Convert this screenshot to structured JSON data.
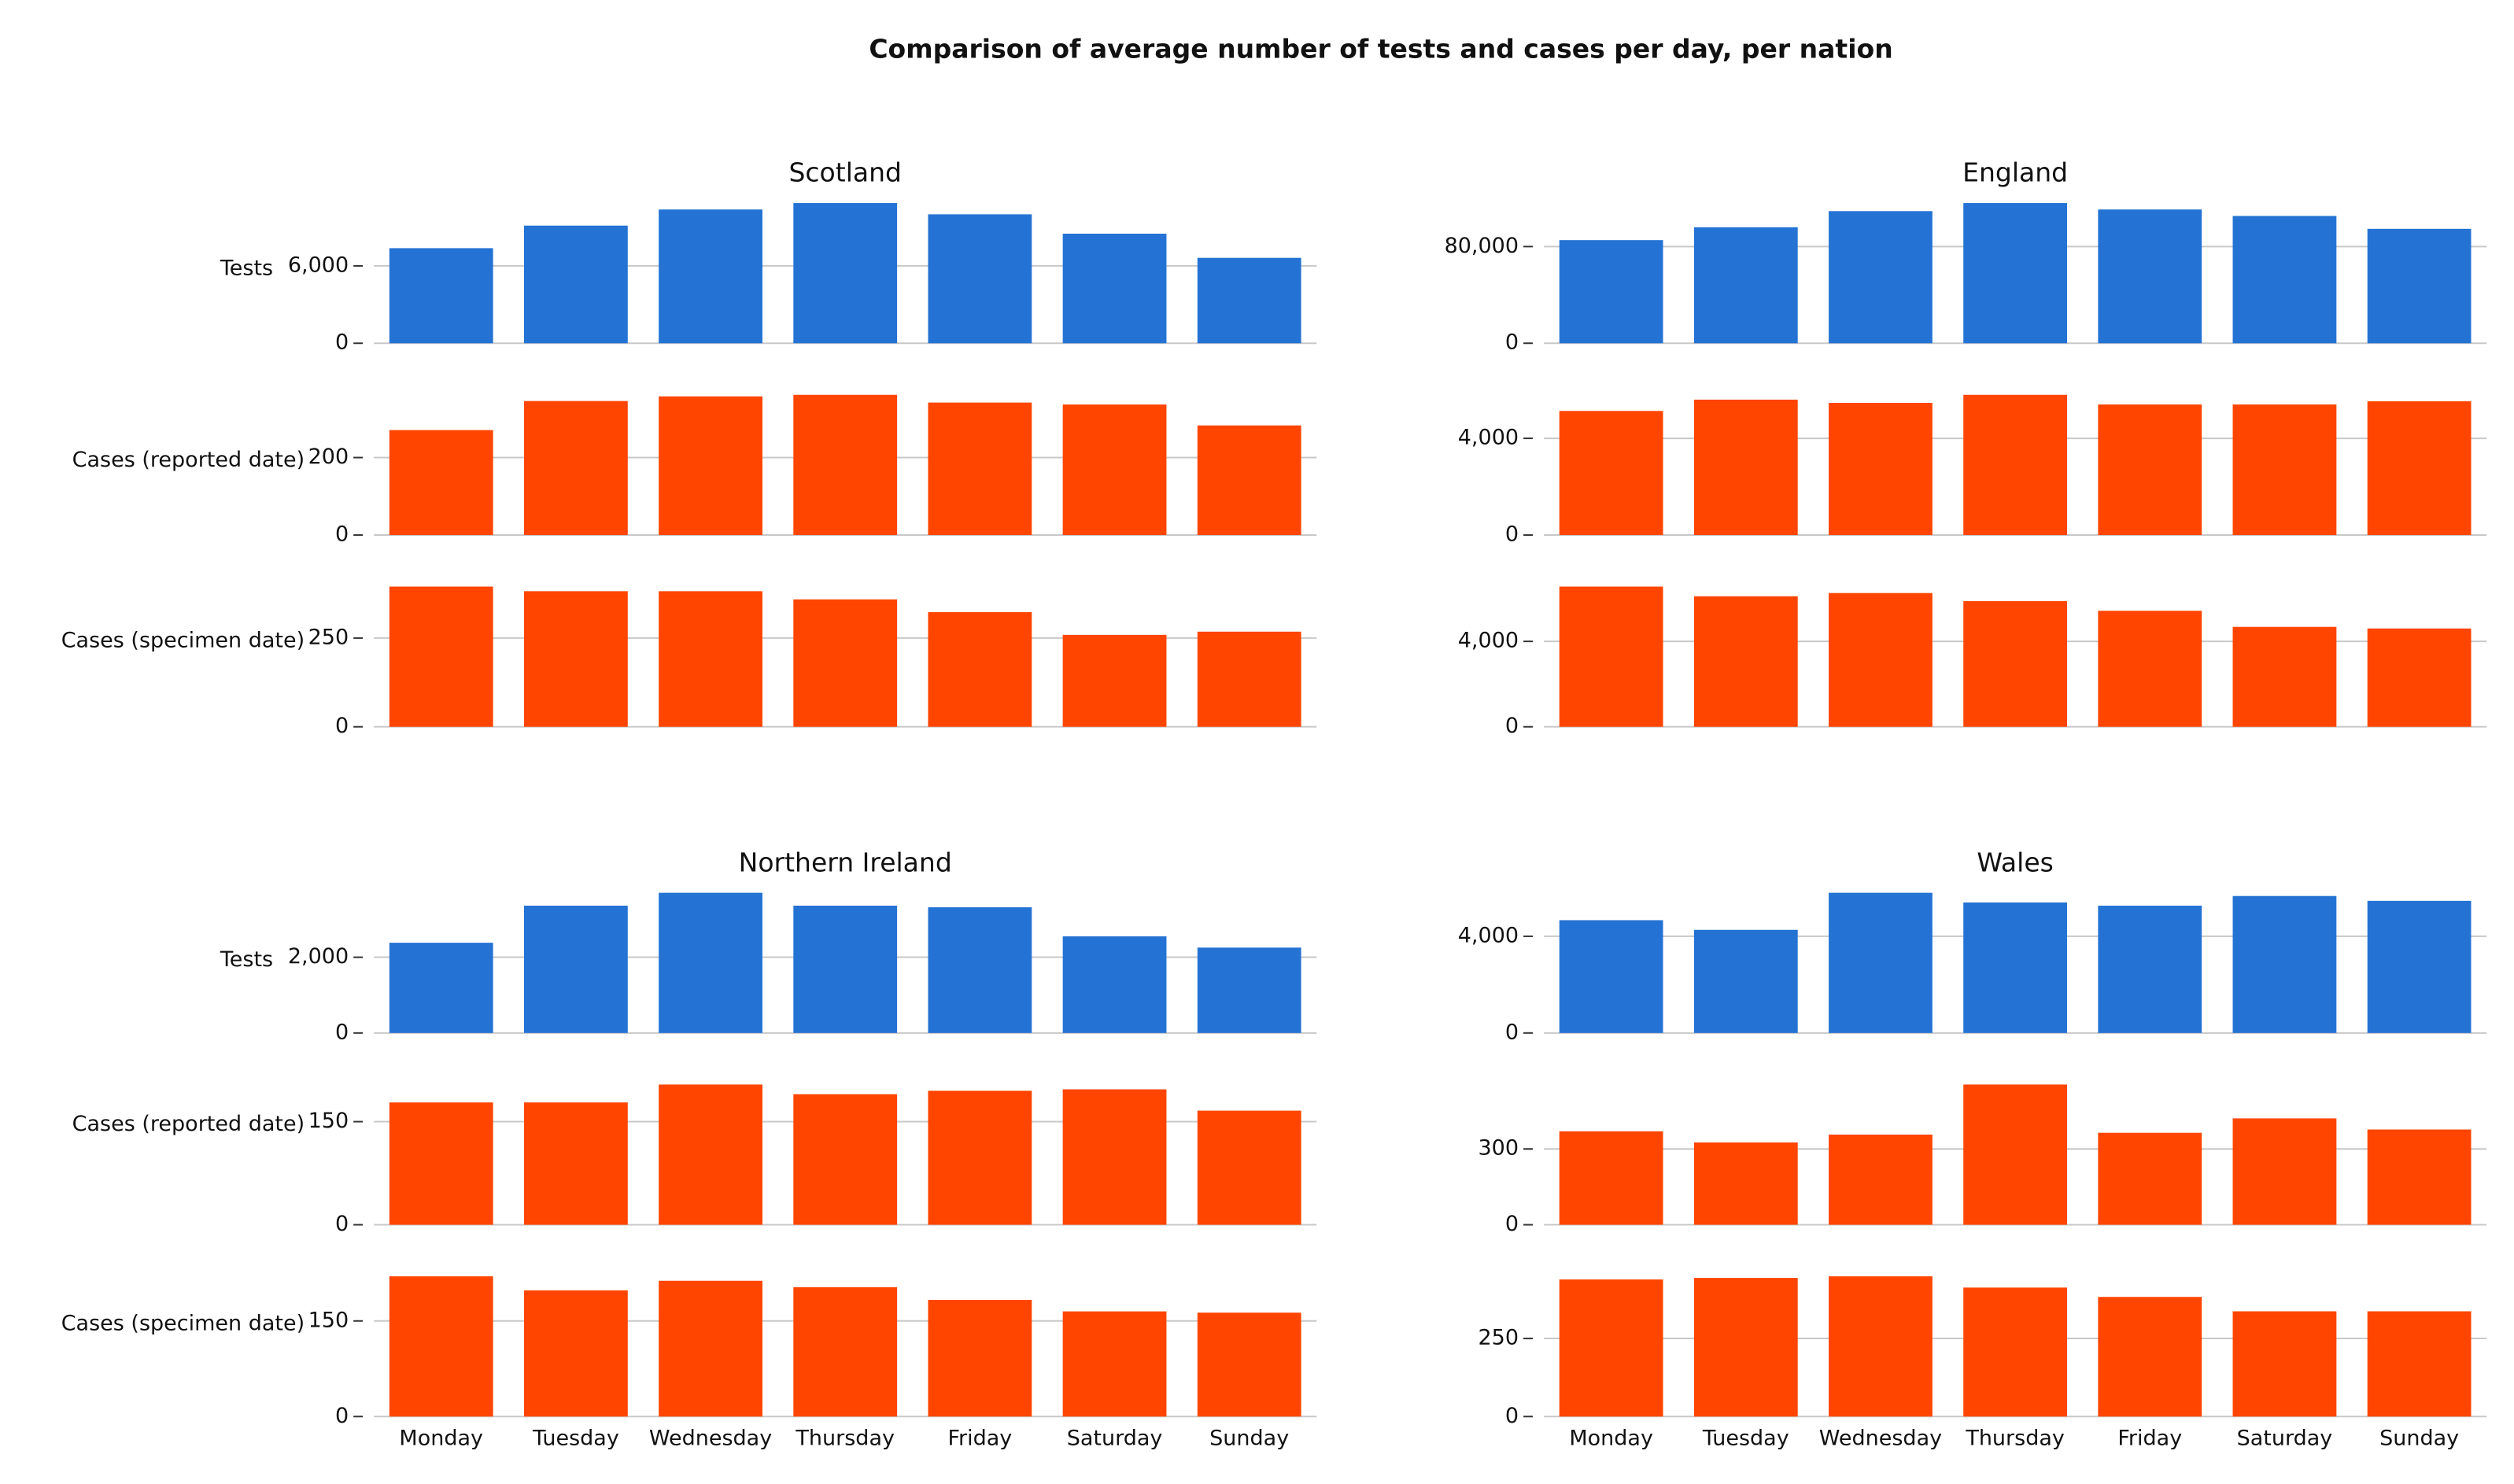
{
  "title": "Comparison of average number of tests and cases per day, per nation",
  "chart_data": [
    {
      "type": "bar",
      "title": "Scotland",
      "categories": [
        "Monday",
        "Tuesday",
        "Wednesday",
        "Thursday",
        "Friday",
        "Saturday",
        "Sunday"
      ],
      "panels": [
        {
          "ylabel": "Tests",
          "color": "#2473d4",
          "values": [
            7375,
            9125,
            10375,
            10875,
            10000,
            8500,
            6625
          ],
          "ylim": [
            0,
            10875
          ],
          "yticks": [
            0,
            {
              "value": 6000,
              "label": "6,000"
            }
          ]
        },
        {
          "ylabel": "Cases (reported date)",
          "color": "#ff4500",
          "values": [
            271,
            346,
            358,
            362,
            342,
            337,
            283
          ],
          "ylim": [
            0,
            362
          ],
          "yticks": [
            0,
            200
          ]
        },
        {
          "ylabel": "Cases (specimen date)",
          "color": "#ff4500",
          "values": [
            395,
            382,
            382,
            359,
            323,
            259,
            268
          ],
          "ylim": [
            0,
            395
          ],
          "yticks": [
            0,
            250
          ]
        }
      ]
    },
    {
      "type": "bar",
      "title": "England",
      "categories": [
        "Monday",
        "Tuesday",
        "Wednesday",
        "Thursday",
        "Friday",
        "Saturday",
        "Sunday"
      ],
      "panels": [
        {
          "color": "#2473d4",
          "values": [
            85333,
            96000,
            109333,
            116000,
            110667,
            105333,
            94667
          ],
          "ylim": [
            0,
            116000
          ],
          "yticks": [
            0,
            {
              "value": 80000,
              "label": "80,000"
            }
          ]
        },
        {
          "color": "#ff4500",
          "values": [
            5133,
            5600,
            5467,
            5800,
            5400,
            5400,
            5533
          ],
          "ylim": [
            0,
            5800
          ],
          "yticks": [
            0,
            {
              "value": 4000,
              "label": "4,000"
            }
          ]
        },
        {
          "color": "#ff4500",
          "values": [
            6566,
            6113,
            6264,
            5887,
            5434,
            4679,
            4604
          ],
          "ylim": [
            0,
            6566
          ],
          "yticks": [
            0,
            {
              "value": 4000,
              "label": "4,000"
            }
          ]
        }
      ]
    },
    {
      "type": "bar",
      "title": "Northern Ireland",
      "categories": [
        "Monday",
        "Tuesday",
        "Wednesday",
        "Thursday",
        "Friday",
        "Saturday",
        "Sunday"
      ],
      "panels": [
        {
          "ylabel": "Tests",
          "color": "#2473d4",
          "values": [
            2383,
            3362,
            3702,
            3362,
            3319,
            2553,
            2255
          ],
          "ylim": [
            0,
            3702
          ],
          "yticks": [
            0,
            {
              "value": 2000,
              "label": "2,000"
            }
          ]
        },
        {
          "ylabel": "Cases (reported date)",
          "color": "#ff4500",
          "values": [
            178,
            178,
            204,
            190,
            195,
            197,
            166
          ],
          "ylim": [
            0,
            204
          ],
          "yticks": [
            0,
            150
          ]
        },
        {
          "ylabel": "Cases (specimen date)",
          "color": "#ff4500",
          "values": [
            220,
            198,
            213,
            203,
            183,
            165,
            163
          ],
          "ylim": [
            0,
            220
          ],
          "yticks": [
            0,
            150
          ]
        }
      ]
    },
    {
      "type": "bar",
      "title": "Wales",
      "categories": [
        "Monday",
        "Tuesday",
        "Wednesday",
        "Thursday",
        "Friday",
        "Saturday",
        "Sunday"
      ],
      "panels": [
        {
          "color": "#2473d4",
          "values": [
            4667,
            4267,
            5800,
            5400,
            5267,
            5667,
            5467
          ],
          "ylim": [
            0,
            5800
          ],
          "yticks": [
            0,
            {
              "value": 4000,
              "label": "4,000"
            }
          ]
        },
        {
          "color": "#ff4500",
          "values": [
            370,
            326,
            357,
            555,
            364,
            421,
            377
          ],
          "ylim": [
            0,
            555
          ],
          "yticks": [
            0,
            300
          ]
        },
        {
          "color": "#ff4500",
          "values": [
            439,
            444,
            449,
            413,
            383,
            337,
            337
          ],
          "ylim": [
            0,
            449
          ],
          "yticks": [
            0,
            250
          ]
        }
      ]
    }
  ]
}
